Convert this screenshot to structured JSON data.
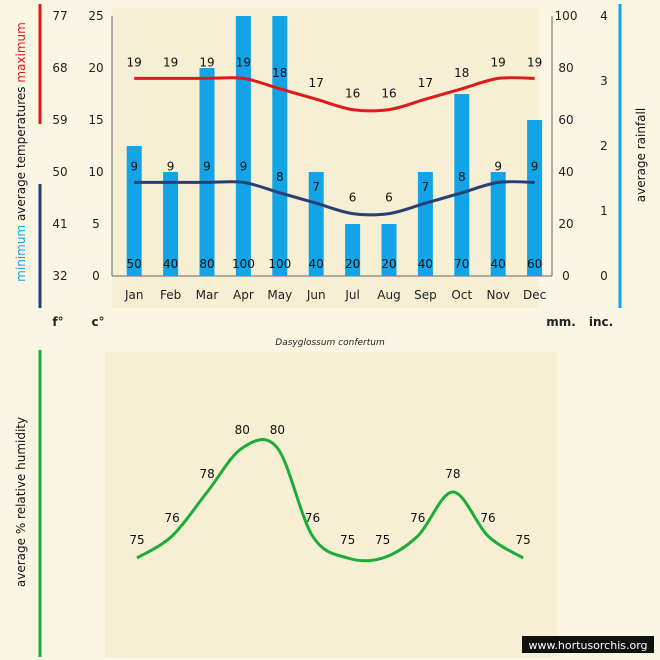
{
  "colors": {
    "background": "#fbf6e3",
    "panel": "#f6efd4",
    "max_line": "#e0191b",
    "min_line": "#2a3f75",
    "rain_bar": "#12a4e6",
    "humidity_line": "#1bad3a",
    "axis_min_accent": "#2a3f75",
    "axis_max_accent": "#e0191b",
    "axis_rain_accent": "#12a4e6",
    "axis_humidity_accent": "#1bad3a"
  },
  "chart_data": [
    {
      "type": "bar+line",
      "title": "Dasyglossum confertum",
      "categories": [
        "Jan",
        "Feb",
        "Mar",
        "Apr",
        "May",
        "Jun",
        "Jul",
        "Aug",
        "Sep",
        "Oct",
        "Nov",
        "Dec"
      ],
      "series": [
        {
          "name": "maximum",
          "kind": "line",
          "axis": "temp",
          "values": [
            19,
            19,
            19,
            19,
            18,
            17,
            16,
            16,
            17,
            18,
            19,
            19
          ]
        },
        {
          "name": "minimum",
          "kind": "line",
          "axis": "temp",
          "values": [
            9,
            9,
            9,
            9,
            8,
            7,
            6,
            6,
            7,
            8,
            9,
            9
          ]
        },
        {
          "name": "average rainfall",
          "kind": "bar",
          "axis": "rain",
          "values": [
            50,
            40,
            80,
            100,
            100,
            40,
            20,
            20,
            40,
            70,
            40,
            60
          ]
        }
      ],
      "axes": {
        "temp_c": {
          "ticks": [
            "0",
            "5",
            "10",
            "15",
            "20",
            "25"
          ],
          "range": [
            0,
            25
          ],
          "unit_label": "c°"
        },
        "temp_f": {
          "ticks": [
            "32",
            "41",
            "50",
            "59",
            "68",
            "77"
          ],
          "unit_label": "f°"
        },
        "rain_mm": {
          "ticks": [
            "0",
            "20",
            "40",
            "60",
            "80",
            "100"
          ],
          "range": [
            0,
            100
          ],
          "unit_label": "mm."
        },
        "rain_inch": {
          "ticks": [
            "0",
            "1",
            "2",
            "3",
            "4"
          ],
          "unit_label": "inc."
        }
      },
      "ylabel_left": {
        "min_word": "minimum",
        "middle": "average temperatures",
        "max_word": "maximum"
      },
      "ylabel_right": "average rainfall",
      "grid": false
    },
    {
      "type": "line",
      "categories": [
        "Jan",
        "Feb",
        "Mar",
        "Apr",
        "May",
        "Jun",
        "Jul",
        "Aug",
        "Sep",
        "Oct",
        "Nov",
        "Dec"
      ],
      "series": [
        {
          "name": "average % relative humidity",
          "values": [
            75,
            76,
            78,
            80,
            80,
            76,
            75,
            75,
            76,
            78,
            76,
            75
          ]
        }
      ],
      "ylabel": "average %  relative humidity",
      "ylim": [
        70,
        85
      ]
    }
  ],
  "watermark": "www.hortusorchis.org"
}
